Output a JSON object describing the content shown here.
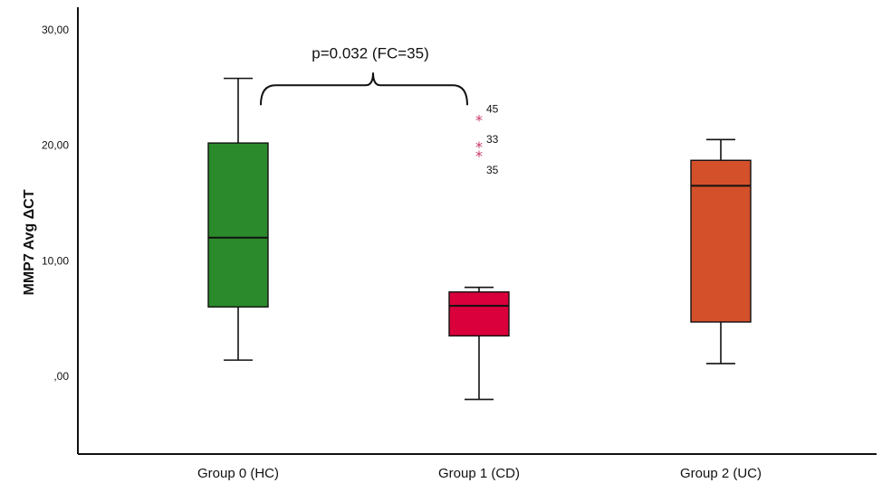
{
  "chart_data": {
    "type": "boxplot",
    "title": "",
    "xlabel": "",
    "ylabel": "MMP7 Avg ΔCT",
    "ylim": [
      -6.5,
      32
    ],
    "yticks": [
      0,
      10,
      20,
      30
    ],
    "ytick_labels": [
      ",00",
      "10,00",
      "20,00",
      "30,00"
    ],
    "grid": false,
    "legend": "none",
    "categories": [
      "Group 0 (HC)",
      "Group 1 (CD)",
      "Group 2 (UC)"
    ],
    "boxes": [
      {
        "category": "Group 0 (HC)",
        "whisker_low": 1.4,
        "q1": 6.0,
        "median": 12.0,
        "q3": 20.2,
        "whisker_high": 25.8,
        "color": "#2b8a2b",
        "outliers": []
      },
      {
        "category": "Group 1 (CD)",
        "whisker_low": -2.0,
        "q1": 3.5,
        "median": 6.1,
        "q3": 7.3,
        "whisker_high": 7.7,
        "color": "#d9003b",
        "outliers": [
          {
            "value": 22.2,
            "label": "45"
          },
          {
            "value": 19.9,
            "label": "33"
          },
          {
            "value": 19.1,
            "label": "35"
          }
        ]
      },
      {
        "category": "Group 2 (UC)",
        "whisker_low": 1.1,
        "q1": 4.7,
        "median": 16.5,
        "q3": 18.7,
        "whisker_high": 20.5,
        "color": "#d4502b",
        "outliers": []
      }
    ],
    "annotation": {
      "text": "p=0.032 (FC=35)",
      "from": "Group 0 (HC)",
      "to": "Group 1 (CD)",
      "y": 25.2
    },
    "outlier_color": "#c8356b"
  }
}
